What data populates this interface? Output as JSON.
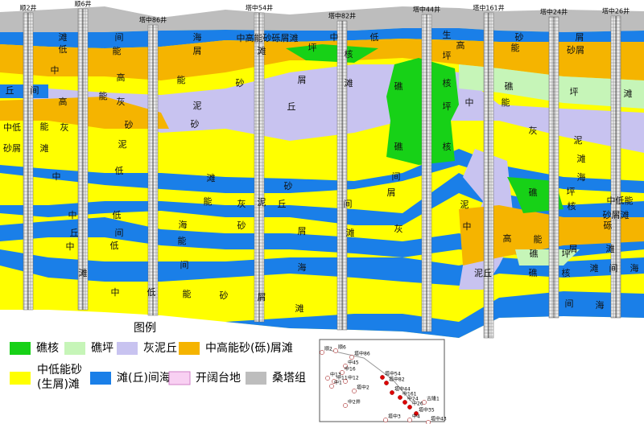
{
  "wells": [
    "顺2井",
    "顺6井",
    "塔中86井",
    "塔中54井",
    "塔中82井",
    "塔中44井",
    "塔中161井",
    "塔中24井",
    "塔中26井"
  ],
  "section_labels": [
    "滩",
    "间",
    "海",
    "中高能砂砾屑滩",
    "中",
    "低",
    "生",
    "高",
    "砂",
    "屑",
    "低",
    "能",
    "屑",
    "滩",
    "坪",
    "核",
    "坪",
    "能",
    "砂屑",
    "中",
    "高",
    "能",
    "砂",
    "屑",
    "滩",
    "礁",
    "核",
    "礁",
    "坪",
    "滩",
    "丘",
    "间",
    "高",
    "能",
    "灰",
    "泥",
    "丘",
    "坪",
    "中",
    "能",
    "中低",
    "能",
    "灰",
    "砂",
    "砂",
    "泥",
    "滩",
    "砂屑",
    "礁",
    "核",
    "灰",
    "泥",
    "中",
    "低",
    "滩",
    "砂",
    "间",
    "屑",
    "泥",
    "滩",
    "海",
    "礁",
    "坪",
    "核",
    "中低能",
    "砂屑滩",
    "中",
    "低",
    "能",
    "灰",
    "泥",
    "丘",
    "间",
    "海",
    "丘",
    "间",
    "砂",
    "屑",
    "滩",
    "灰",
    "中",
    "高",
    "能",
    "砾",
    "屑",
    "滩",
    "中",
    "低",
    "能",
    "间",
    "海",
    "礁",
    "坪",
    "滩",
    "泥丘",
    "礁",
    "核",
    "滩",
    "间",
    "海",
    "中",
    "低",
    "能",
    "砂",
    "屑",
    "滩",
    "间",
    "海"
  ],
  "legend": {
    "title": "图例",
    "items": [
      {
        "label": "礁核",
        "color": "#17d117"
      },
      {
        "label": "礁坪",
        "color": "#c6f5b8"
      },
      {
        "label": "灰泥丘",
        "color": "#c8c3f0"
      },
      {
        "label": "中高能砂(砾)屑滩",
        "color": "#f5b400"
      },
      {
        "label": [
          "中低能砂",
          "(生屑)滩"
        ],
        "color": "#ffff00"
      },
      {
        "label": "滩(丘)间海",
        "color": "#1a7fe8"
      },
      {
        "label": "开阔台地",
        "color": "#f8d0f2"
      },
      {
        "label": "桑塔组",
        "color": "#bdbdbd"
      }
    ]
  },
  "map_labels": [
    "顺2",
    "顺6",
    "塔中86",
    "中45",
    "中16",
    "中13",
    "中11",
    "中12",
    "中1",
    "塔中2",
    "塔中54",
    "塔中82",
    "塔中44",
    "中161",
    "中24",
    "中26",
    "塔中35",
    "中4",
    "塔中3",
    "塔中43",
    "古隆1",
    "中2井"
  ]
}
